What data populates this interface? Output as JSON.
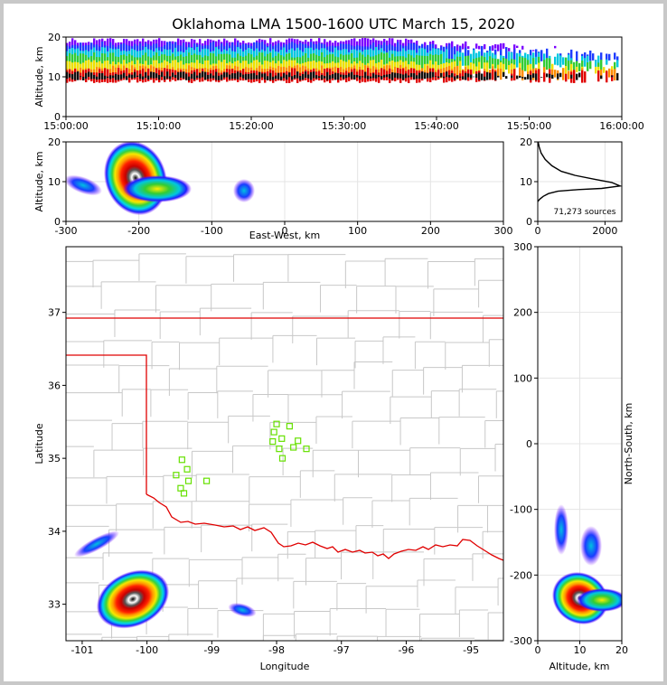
{
  "chart_data": [
    {
      "type": "heatmap",
      "name": "time-height",
      "title": "Oklahoma LMA 1500-1600 UTC March 15, 2020",
      "xlabel": "",
      "ylabel": "Altitude, km",
      "xlim": [
        0,
        60
      ],
      "ylim": [
        0,
        20
      ],
      "x_tick_values": [
        0,
        10,
        20,
        30,
        40,
        50,
        60
      ],
      "x_tick_labels": [
        "15:00:00",
        "15:10:00",
        "15:20:00",
        "15:30:00",
        "15:40:00",
        "15:50:00",
        "16:00:00"
      ],
      "y_ticks": [
        0,
        10,
        20
      ],
      "density_core_altitude_km": 10
    },
    {
      "type": "heatmap",
      "name": "east-west-altitude",
      "xlabel": "East-West, km",
      "ylabel": "Altitude, km",
      "xlim": [
        -300,
        300
      ],
      "ylim": [
        0,
        20
      ],
      "x_ticks": [
        -300,
        -200,
        -100,
        0,
        100,
        200,
        300
      ],
      "y_ticks": [
        0,
        10,
        20
      ],
      "clusters": [
        {
          "x_center": -215,
          "alt_center": 10
        },
        {
          "x_center": -55,
          "alt_center": 8
        }
      ]
    },
    {
      "type": "line",
      "name": "altitude-histogram",
      "xlim": [
        0,
        2500
      ],
      "ylim": [
        0,
        20
      ],
      "x_ticks": [
        0,
        2000
      ],
      "y_ticks": [
        0,
        10,
        20
      ],
      "annotation": "71,273 sources",
      "points": [
        [
          0,
          5
        ],
        [
          60,
          5.6
        ],
        [
          160,
          6.3
        ],
        [
          320,
          7
        ],
        [
          600,
          7.6
        ],
        [
          1200,
          8
        ],
        [
          1900,
          8.3
        ],
        [
          2450,
          8.9
        ],
        [
          2200,
          9.8
        ],
        [
          1700,
          10.6
        ],
        [
          1100,
          11.6
        ],
        [
          700,
          12.6
        ],
        [
          420,
          14
        ],
        [
          220,
          15.6
        ],
        [
          100,
          17.2
        ],
        [
          40,
          18.8
        ],
        [
          10,
          20
        ]
      ]
    },
    {
      "type": "scatter",
      "name": "plan-view-map",
      "xlabel": "Longitude",
      "ylabel": "Latitude",
      "xlim": [
        -101.25,
        -94.5
      ],
      "ylim": [
        32.5,
        37.9
      ],
      "x_ticks": [
        -101,
        -100,
        -99,
        -98,
        -97,
        -96,
        -95
      ],
      "y_ticks": [
        33,
        34,
        35,
        36,
        37
      ],
      "stations": [
        {
          "lon": -99.46,
          "lat": 34.98
        },
        {
          "lon": -99.38,
          "lat": 34.85
        },
        {
          "lon": -99.55,
          "lat": 34.77
        },
        {
          "lon": -99.36,
          "lat": 34.69
        },
        {
          "lon": -99.08,
          "lat": 34.69
        },
        {
          "lon": -99.48,
          "lat": 34.59
        },
        {
          "lon": -99.43,
          "lat": 34.52
        },
        {
          "lon": -98.0,
          "lat": 35.47
        },
        {
          "lon": -97.8,
          "lat": 35.44
        },
        {
          "lon": -98.04,
          "lat": 35.36
        },
        {
          "lon": -97.92,
          "lat": 35.27
        },
        {
          "lon": -98.06,
          "lat": 35.23
        },
        {
          "lon": -97.67,
          "lat": 35.24
        },
        {
          "lon": -97.74,
          "lat": 35.15
        },
        {
          "lon": -97.96,
          "lat": 35.13
        },
        {
          "lon": -97.54,
          "lat": 35.13
        },
        {
          "lon": -97.91,
          "lat": 35.0
        }
      ],
      "clusters": [
        {
          "lon": -100.1,
          "lat": 33.15
        },
        {
          "lon": -98.55,
          "lat": 33.0
        },
        {
          "lon": -100.85,
          "lat": 33.95
        }
      ]
    },
    {
      "type": "heatmap",
      "name": "altitude-north-south",
      "xlabel": "Altitude, km",
      "ylabel": "North-South, km",
      "xlim": [
        0,
        20
      ],
      "ylim": [
        -300,
        300
      ],
      "x_ticks": [
        0,
        10,
        20
      ],
      "y_ticks": [
        -300,
        -200,
        -100,
        0,
        100,
        200,
        300
      ],
      "cluster": {
        "alt_center": 10,
        "ns_center": -235
      }
    }
  ]
}
